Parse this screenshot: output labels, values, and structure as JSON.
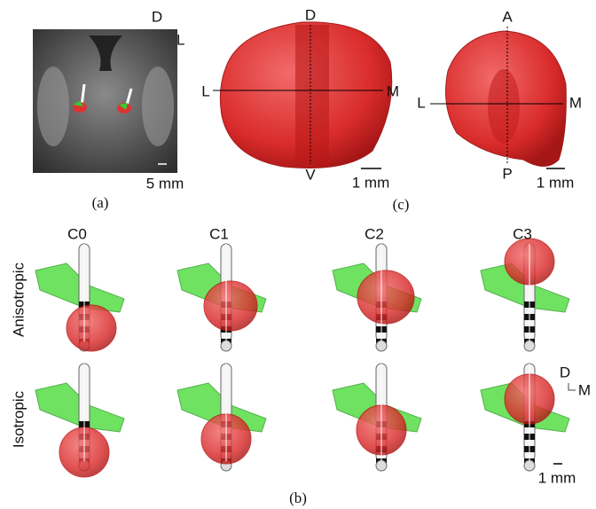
{
  "panel_a": {
    "orientation": {
      "up": "D",
      "side": "L"
    },
    "scale_label": "5 mm",
    "caption": "(a)"
  },
  "panel_c": {
    "coronal": {
      "top": "D",
      "left": "L",
      "right": "M",
      "bottom": "V",
      "scale_label": "1 mm"
    },
    "axial": {
      "top": "A",
      "left": "L",
      "right": "M",
      "bottom": "P",
      "scale_label": "1 mm"
    },
    "caption": "(c)"
  },
  "panel_b": {
    "columns": [
      "C0",
      "C1",
      "C2",
      "C3"
    ],
    "rows": [
      "Anisotropic",
      "Isotropic"
    ],
    "orientation": {
      "up": "D",
      "side": "M"
    },
    "scale_label": "1 mm",
    "caption": "(b)"
  }
}
